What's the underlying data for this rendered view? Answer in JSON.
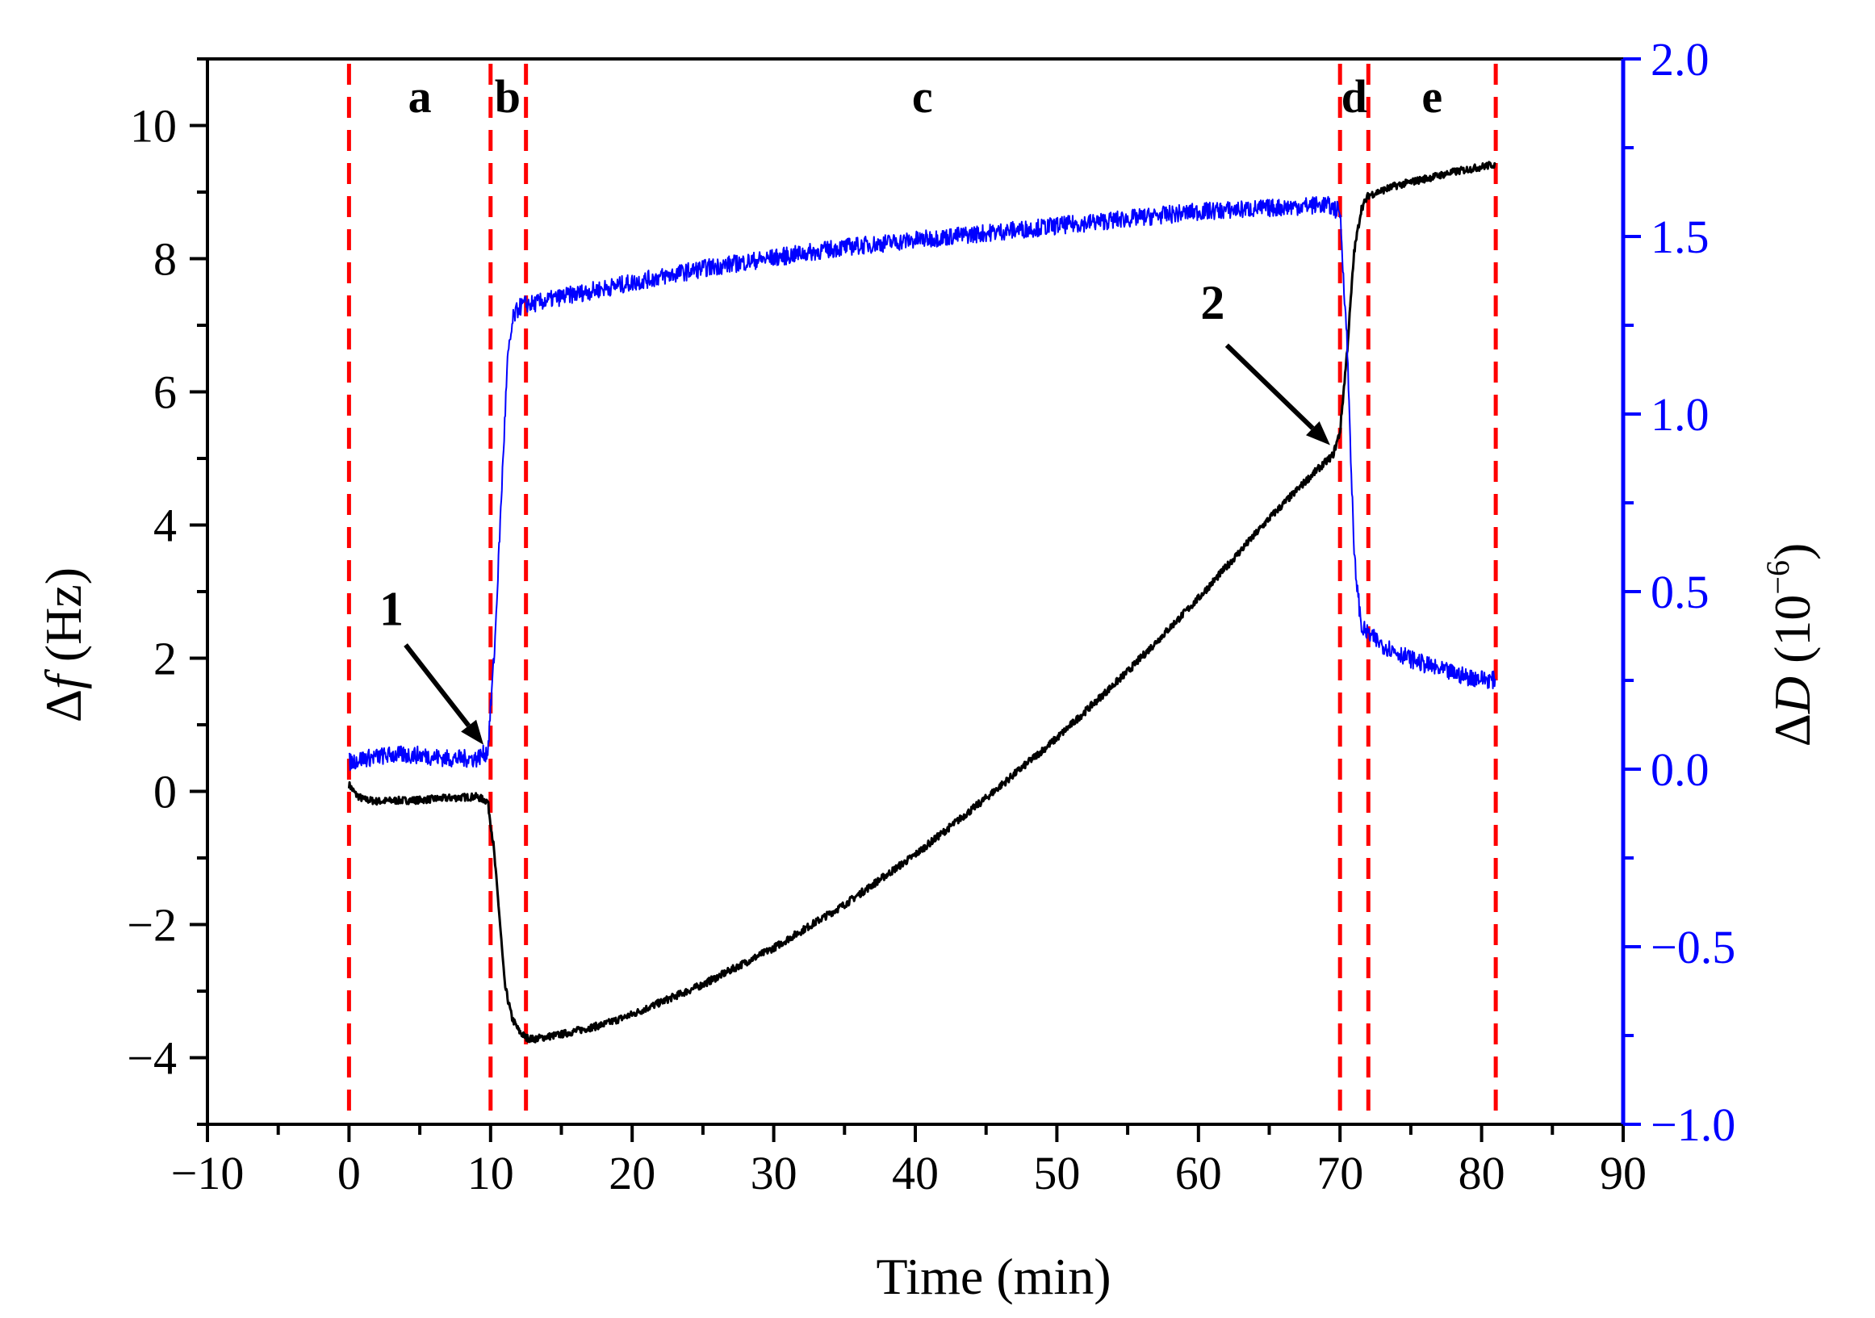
{
  "chart_data": {
    "type": "line",
    "title": "",
    "xlabel": "Time (min)",
    "ylabel_left": {
      "symbol": "Δ",
      "italic": "f",
      "unit": " (Hz)"
    },
    "ylabel_right": {
      "symbol": "Δ",
      "italic": "D",
      "unit_pre": " (10",
      "exp": "−6",
      "unit_post": ")"
    },
    "xlim": [
      -10,
      90
    ],
    "ylim_left": [
      -5,
      11
    ],
    "ylim_right": [
      -1.0,
      2.0
    ],
    "x_ticks": [
      "−10",
      "0",
      "10",
      "20",
      "30",
      "40",
      "50",
      "60",
      "70",
      "80",
      "90"
    ],
    "x_tick_values": [
      -10,
      0,
      10,
      20,
      30,
      40,
      50,
      60,
      70,
      80,
      90
    ],
    "y_left_ticks": [
      "−4",
      "−2",
      "0",
      "2",
      "4",
      "6",
      "8",
      "10"
    ],
    "y_left_tick_values": [
      -4,
      -2,
      0,
      2,
      4,
      6,
      8,
      10
    ],
    "y_right_ticks": [
      "−1.0",
      "−0.5",
      "0.0",
      "0.5",
      "1.0",
      "1.5",
      "2.0"
    ],
    "y_right_tick_values": [
      -1.0,
      -0.5,
      0.0,
      0.5,
      1.0,
      1.5,
      2.0
    ],
    "phase_boundaries": [
      0,
      10,
      12.5,
      70,
      72,
      81
    ],
    "phases": [
      {
        "label": "a",
        "x": 5
      },
      {
        "label": "b",
        "x": 11.2
      },
      {
        "label": "c",
        "x": 40.5
      },
      {
        "label": "d",
        "x": 71
      },
      {
        "label": "e",
        "x": 76.5
      }
    ],
    "annotations": [
      {
        "label": "1",
        "text_x": 3,
        "text_y": 2.5,
        "arrow_from": [
          4,
          2.2
        ],
        "arrow_to": [
          9.5,
          0.7
        ]
      },
      {
        "label": "2",
        "text_x": 61,
        "text_y": 7.1,
        "arrow_from": [
          62,
          6.7
        ],
        "arrow_to": [
          69.3,
          5.2
        ]
      }
    ],
    "series": [
      {
        "name": "Δf",
        "axis": "left",
        "color": "#000000",
        "x": [
          0,
          0.5,
          1,
          2,
          3,
          5,
          7,
          9,
          9.8,
          10.2,
          10.6,
          11,
          11.5,
          12,
          12.5,
          13,
          15,
          18,
          20,
          25,
          30,
          35,
          40,
          45,
          50,
          55,
          60,
          65,
          68,
          69.5,
          70,
          70.5,
          71,
          71.5,
          72,
          74,
          76,
          78,
          80,
          81
        ],
        "values": [
          0.1,
          -0.05,
          -0.12,
          -0.15,
          -0.14,
          -0.13,
          -0.1,
          -0.08,
          -0.15,
          -0.8,
          -1.8,
          -2.9,
          -3.4,
          -3.6,
          -3.7,
          -3.72,
          -3.65,
          -3.5,
          -3.35,
          -2.9,
          -2.35,
          -1.7,
          -0.95,
          -0.1,
          0.8,
          1.8,
          2.9,
          4.1,
          4.75,
          5.05,
          5.4,
          6.6,
          8.1,
          8.75,
          8.95,
          9.1,
          9.2,
          9.3,
          9.38,
          9.42
        ]
      },
      {
        "name": "ΔD",
        "axis": "right",
        "color": "#0000ff",
        "x": [
          0,
          1,
          3,
          5,
          7,
          9,
          9.8,
          10.3,
          10.8,
          11.2,
          11.6,
          12,
          12.5,
          13,
          15,
          20,
          25,
          30,
          35,
          40,
          45,
          50,
          55,
          60,
          65,
          69,
          70,
          70.5,
          71,
          71.5,
          72,
          73,
          75,
          77,
          79,
          81
        ],
        "values": [
          0.02,
          0.03,
          0.04,
          0.04,
          0.03,
          0.03,
          0.05,
          0.35,
          0.8,
          1.15,
          1.27,
          1.3,
          1.31,
          1.31,
          1.33,
          1.37,
          1.41,
          1.44,
          1.47,
          1.49,
          1.51,
          1.53,
          1.55,
          1.57,
          1.58,
          1.59,
          1.57,
          1.2,
          0.6,
          0.4,
          0.38,
          0.35,
          0.31,
          0.28,
          0.26,
          0.25
        ]
      }
    ]
  }
}
